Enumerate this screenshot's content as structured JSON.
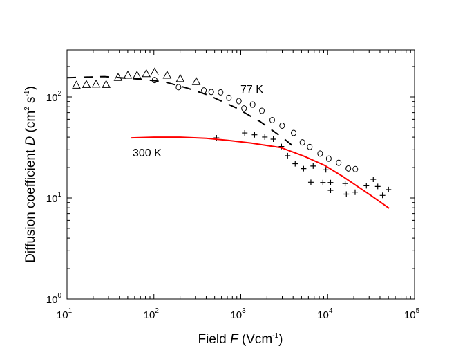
{
  "chart_data": {
    "type": "scatter",
    "xscale": "log",
    "yscale": "log",
    "xlim": [
      10,
      100000
    ],
    "ylim": [
      1,
      300
    ],
    "xlabel": {
      "pre": "Field ",
      "var": "F",
      "unit": " (Vcm",
      "exp": "-1",
      "post": ")"
    },
    "ylabel": {
      "pre": "Diffusion coefficient ",
      "var": "D",
      "unit1": " (cm",
      "exp1": "2",
      "unit2": " s",
      "exp2": "-1",
      "post": ")"
    },
    "x_ticks": [
      {
        "value": 10,
        "base": "10",
        "exp": "1"
      },
      {
        "value": 100,
        "base": "10",
        "exp": "2"
      },
      {
        "value": 1000,
        "base": "10",
        "exp": "3"
      },
      {
        "value": 10000,
        "base": "10",
        "exp": "4"
      },
      {
        "value": 100000,
        "base": "10",
        "exp": "5"
      }
    ],
    "y_ticks": [
      {
        "value": 1,
        "base": "10",
        "exp": "0"
      },
      {
        "value": 10,
        "base": "10",
        "exp": "1"
      },
      {
        "value": 100,
        "base": "10",
        "exp": "2"
      }
    ],
    "annotations": [
      {
        "text": "77 K",
        "x": 1000,
        "y": 118
      },
      {
        "text": "300 K",
        "x": 60,
        "y": 30
      }
    ],
    "series": [
      {
        "name": "77 K data (triangles)",
        "marker": "triangle",
        "color": "#000000",
        "points": [
          [
            12.8,
            130
          ],
          [
            16.7,
            132
          ],
          [
            21.6,
            133
          ],
          [
            28.2,
            132
          ],
          [
            38.7,
            155
          ],
          [
            50.1,
            163
          ],
          [
            63.9,
            163
          ],
          [
            81.8,
            169
          ],
          [
            102,
            175
          ],
          [
            142,
            163
          ],
          [
            201,
            151
          ],
          [
            307,
            141
          ]
        ]
      },
      {
        "name": "77 K data (circles)",
        "marker": "circle",
        "color": "#000000",
        "points": [
          [
            102,
            147
          ],
          [
            192,
            125
          ],
          [
            376,
            116
          ],
          [
            457,
            112
          ],
          [
            586,
            111
          ],
          [
            730,
            98
          ],
          [
            950,
            91
          ],
          [
            1090,
            77
          ],
          [
            1370,
            84
          ],
          [
            1750,
            73
          ],
          [
            2300,
            59
          ],
          [
            2990,
            52
          ],
          [
            4060,
            44
          ],
          [
            5120,
            35.5
          ],
          [
            6220,
            32
          ],
          [
            8190,
            27.5
          ],
          [
            10300,
            24.5
          ],
          [
            13400,
            22.3
          ],
          [
            17300,
            19.6
          ],
          [
            20800,
            19.3
          ]
        ]
      },
      {
        "name": "300 K data",
        "marker": "plus",
        "color": "#000000",
        "points": [
          [
            525,
            39.4
          ],
          [
            1110,
            44
          ],
          [
            1440,
            42.2
          ],
          [
            1890,
            40.1
          ],
          [
            2370,
            38.2
          ],
          [
            2940,
            32.3
          ],
          [
            3460,
            26.2
          ],
          [
            4230,
            21.8
          ],
          [
            5280,
            19.5
          ],
          [
            6810,
            20.7
          ],
          [
            9540,
            19.0
          ],
          [
            6410,
            14.3
          ],
          [
            8810,
            14.2
          ],
          [
            10800,
            14.2
          ],
          [
            10800,
            11.9
          ],
          [
            15900,
            13.9
          ],
          [
            16400,
            10.9
          ],
          [
            20700,
            11.4
          ],
          [
            27900,
            13.2
          ],
          [
            33500,
            15.3
          ],
          [
            37700,
            13.0
          ],
          [
            42800,
            10.6
          ],
          [
            50100,
            12.1
          ]
        ]
      },
      {
        "name": "77 K model",
        "marker": "dashed-line",
        "color": "#000000",
        "points": [
          [
            10,
            155
          ],
          [
            27,
            159
          ],
          [
            68,
            150
          ],
          [
            132,
            141
          ],
          [
            245,
            122
          ],
          [
            424,
            104
          ],
          [
            883,
            78
          ],
          [
            1670,
            57
          ],
          [
            3090,
            39
          ],
          [
            4300,
            31
          ]
        ]
      },
      {
        "name": "300 K model",
        "marker": "line",
        "color": "#ff0000",
        "points": [
          [
            55,
            39.4
          ],
          [
            100,
            40
          ],
          [
            200,
            40
          ],
          [
            400,
            39
          ],
          [
            713,
            37.2
          ],
          [
            1310,
            35
          ],
          [
            2900,
            31.5
          ],
          [
            5350,
            25.9
          ],
          [
            9250,
            21
          ],
          [
            15100,
            16.2
          ],
          [
            21800,
            13.1
          ],
          [
            31400,
            10.6
          ],
          [
            51000,
            7.9
          ]
        ]
      }
    ]
  }
}
